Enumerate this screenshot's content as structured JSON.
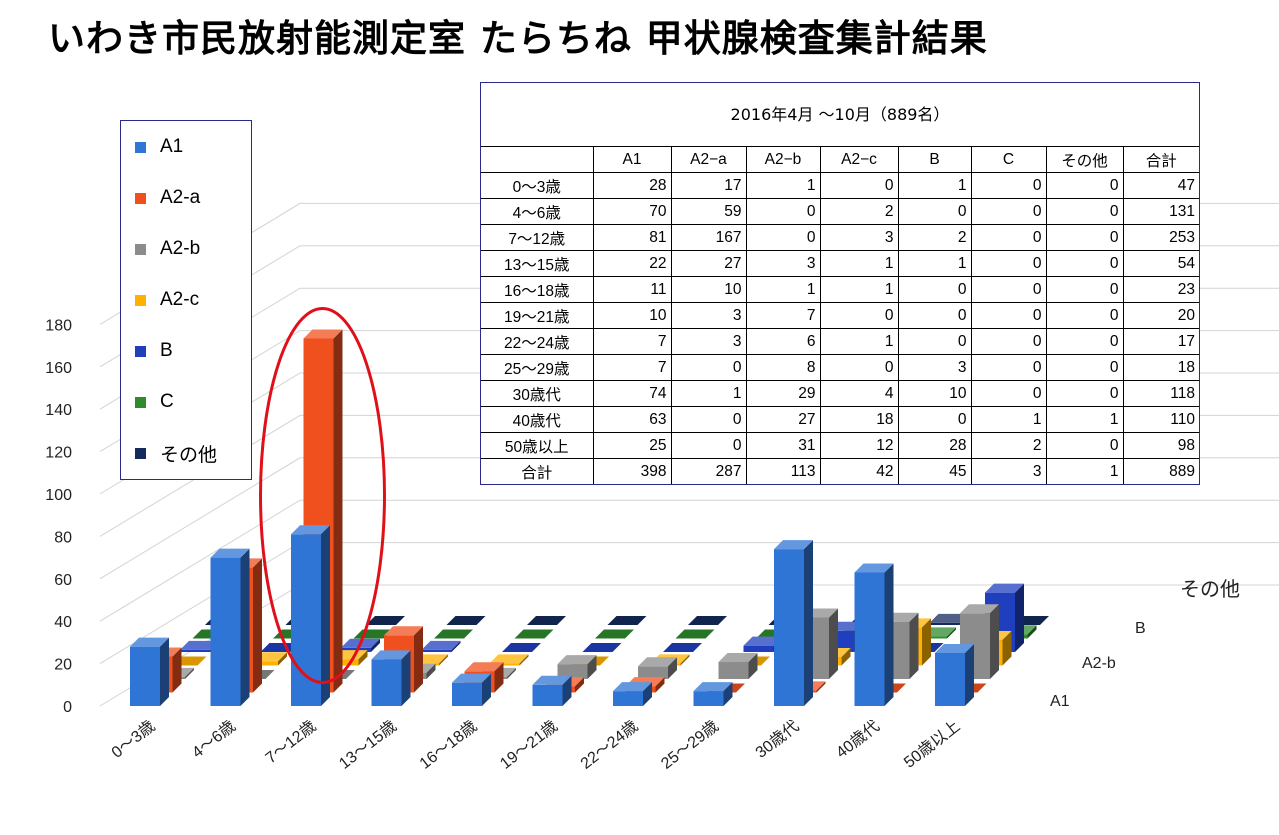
{
  "title": "いわき市民放射能測定室 たらちね 甲状腺検査集計結果",
  "table": {
    "caption": "2016年4月 〜10月（889名）",
    "headers": [
      "",
      "A1",
      "A2−a",
      "A2−b",
      "A2−c",
      "B",
      "C",
      "その他",
      "合計"
    ],
    "rows": [
      [
        "0〜3歳",
        "28",
        "17",
        "1",
        "0",
        "1",
        "0",
        "0",
        "47"
      ],
      [
        "4〜6歳",
        "70",
        "59",
        "0",
        "2",
        "0",
        "0",
        "0",
        "131"
      ],
      [
        "7〜12歳",
        "81",
        "167",
        "0",
        "3",
        "2",
        "0",
        "0",
        "253"
      ],
      [
        "13〜15歳",
        "22",
        "27",
        "3",
        "1",
        "1",
        "0",
        "0",
        "54"
      ],
      [
        "16〜18歳",
        "11",
        "10",
        "1",
        "1",
        "0",
        "0",
        "0",
        "23"
      ],
      [
        "19〜21歳",
        "10",
        "3",
        "7",
        "0",
        "0",
        "0",
        "0",
        "20"
      ],
      [
        "22〜24歳",
        "7",
        "3",
        "6",
        "1",
        "0",
        "0",
        "0",
        "17"
      ],
      [
        "25〜29歳",
        "7",
        "0",
        "8",
        "0",
        "3",
        "0",
        "0",
        "18"
      ],
      [
        "30歳代",
        "74",
        "1",
        "29",
        "4",
        "10",
        "0",
        "0",
        "118"
      ],
      [
        "40歳代",
        "63",
        "0",
        "27",
        "18",
        "0",
        "1",
        "1",
        "110"
      ],
      [
        "50歳以上",
        "25",
        "0",
        "31",
        "12",
        "28",
        "2",
        "0",
        "98"
      ],
      [
        "合計",
        "398",
        "287",
        "113",
        "42",
        "45",
        "3",
        "1",
        "889"
      ]
    ]
  },
  "legend": [
    {
      "label": "A1",
      "color": "#2f75d6"
    },
    {
      "label": "A2-a",
      "color": "#f0501e"
    },
    {
      "label": "A2-b",
      "color": "#8c8c8c"
    },
    {
      "label": "A2-c",
      "color": "#ffb000"
    },
    {
      "label": "B",
      "color": "#1f3fbf"
    },
    {
      "label": "C",
      "color": "#2e8b2e"
    },
    {
      "label": "その他",
      "color": "#142a5c"
    }
  ],
  "chart_data": {
    "type": "bar",
    "title": "",
    "categories": [
      "0〜3歳",
      "4〜6歳",
      "7〜12歳",
      "13〜15歳",
      "16〜18歳",
      "19〜21歳",
      "22〜24歳",
      "25〜29歳",
      "30歳代",
      "40歳代",
      "50歳以上"
    ],
    "series": [
      {
        "name": "A1",
        "values": [
          28,
          70,
          81,
          22,
          11,
          10,
          7,
          7,
          74,
          63,
          25
        ]
      },
      {
        "name": "A2-a",
        "values": [
          17,
          59,
          167,
          27,
          10,
          3,
          3,
          0,
          1,
          0,
          0
        ]
      },
      {
        "name": "A2-b",
        "values": [
          1,
          0,
          0,
          3,
          1,
          7,
          6,
          8,
          29,
          27,
          31
        ]
      },
      {
        "name": "A2-c",
        "values": [
          0,
          2,
          3,
          1,
          1,
          0,
          1,
          0,
          4,
          18,
          12
        ]
      },
      {
        "name": "B",
        "values": [
          1,
          0,
          2,
          1,
          0,
          0,
          0,
          3,
          10,
          0,
          28
        ]
      },
      {
        "name": "C",
        "values": [
          0,
          0,
          0,
          0,
          0,
          0,
          0,
          0,
          0,
          1,
          2
        ]
      },
      {
        "name": "その他",
        "values": [
          0,
          0,
          0,
          0,
          0,
          0,
          0,
          0,
          0,
          1,
          0
        ]
      }
    ],
    "y_ticks": [
      "0",
      "20",
      "40",
      "60",
      "80",
      "100",
      "120",
      "140",
      "160",
      "180"
    ],
    "ylim": [
      0,
      180
    ],
    "depth_axis_labels": [
      "A1",
      "A2-b",
      "B",
      "その他"
    ],
    "grid": true,
    "legend_position": "left",
    "highlight": {
      "category": "7〜12歳",
      "series": "A2-a",
      "shape": "ellipse",
      "color": "#e0101a"
    }
  }
}
